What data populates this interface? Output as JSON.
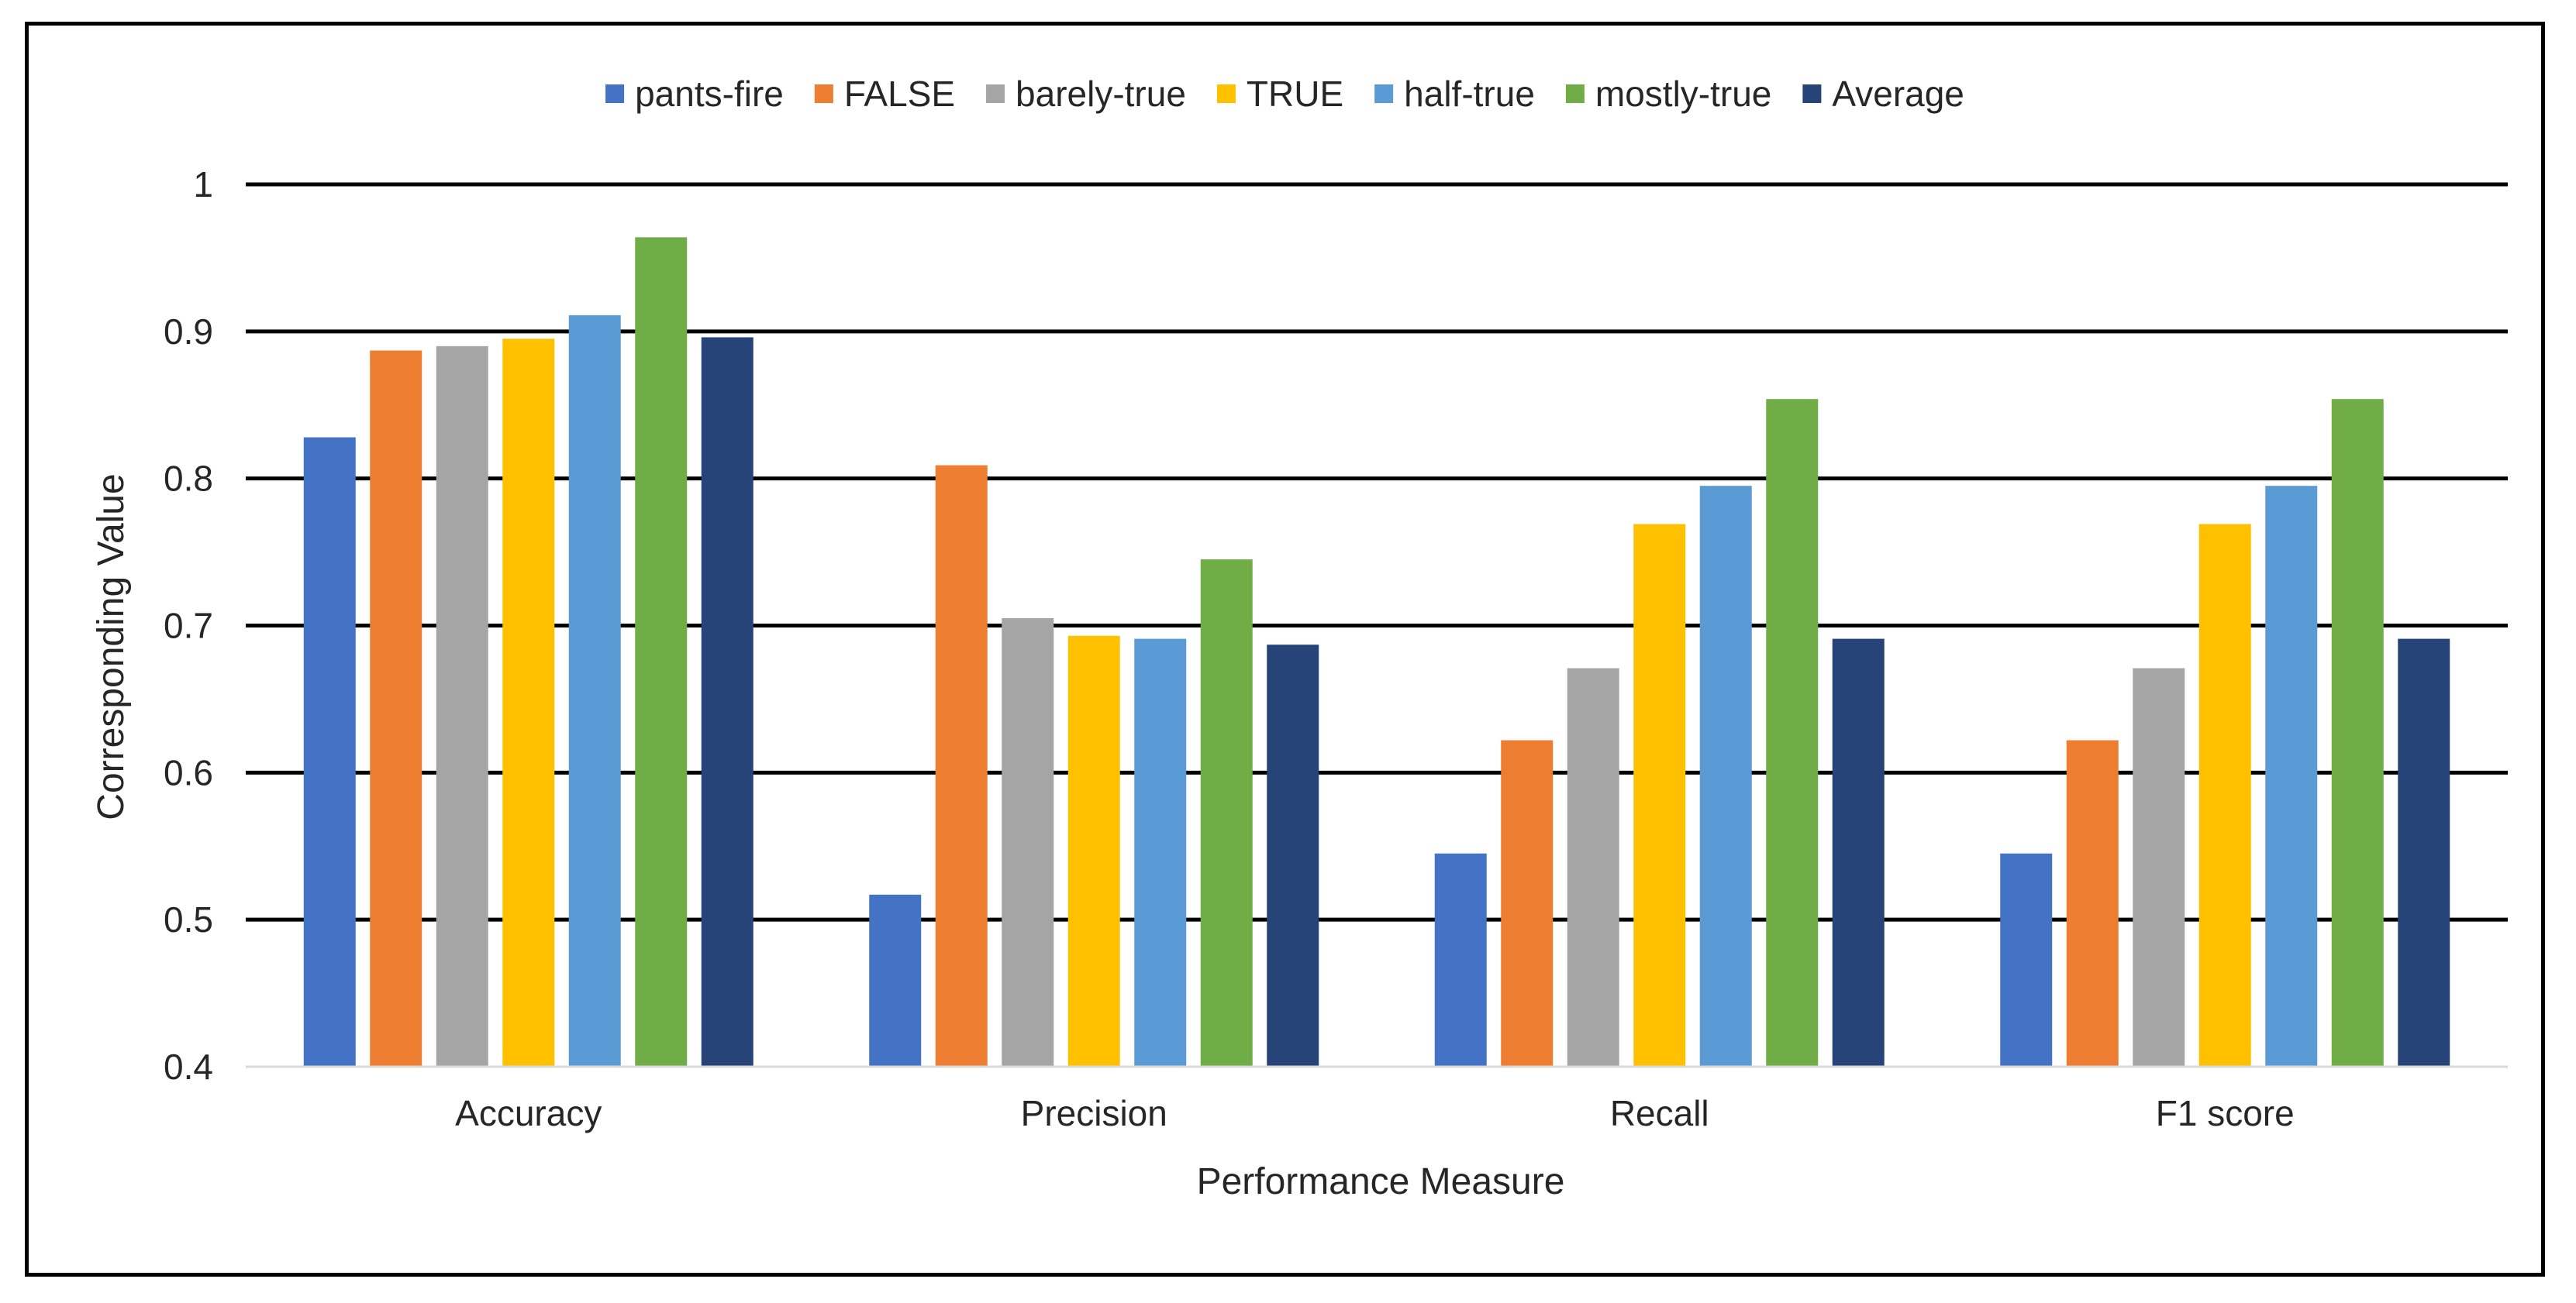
{
  "chart_data": {
    "type": "bar",
    "title": "",
    "xlabel": "Performance Measure",
    "ylabel": "Corresponding Value",
    "categories": [
      "Accuracy",
      "Precision",
      "Recall",
      "F1 score"
    ],
    "ylim": [
      0.4,
      1.0
    ],
    "yticks": [
      0.4,
      0.5,
      0.6,
      0.7,
      0.8,
      0.9,
      1.0
    ],
    "ytick_labels": [
      "0.4",
      "0.5",
      "0.6",
      "0.7",
      "0.8",
      "0.9",
      "1"
    ],
    "grid": true,
    "legend_position": "top",
    "series": [
      {
        "name": "pants-fire",
        "color": "#4472C4",
        "values": [
          0.828,
          0.517,
          0.545,
          0.545
        ]
      },
      {
        "name": "FALSE",
        "color": "#ED7D31",
        "values": [
          0.887,
          0.809,
          0.622,
          0.622
        ]
      },
      {
        "name": "barely-true",
        "color": "#A5A5A5",
        "values": [
          0.89,
          0.705,
          0.671,
          0.671
        ]
      },
      {
        "name": "TRUE",
        "color": "#FFC000",
        "values": [
          0.895,
          0.693,
          0.769,
          0.769
        ]
      },
      {
        "name": "half-true",
        "color": "#5B9BD5",
        "values": [
          0.911,
          0.691,
          0.795,
          0.795
        ]
      },
      {
        "name": "mostly-true",
        "color": "#70AD47",
        "values": [
          0.964,
          0.745,
          0.854,
          0.854
        ]
      },
      {
        "name": "Average",
        "color": "#264478",
        "values": [
          0.896,
          0.687,
          0.691,
          0.691
        ]
      }
    ]
  }
}
